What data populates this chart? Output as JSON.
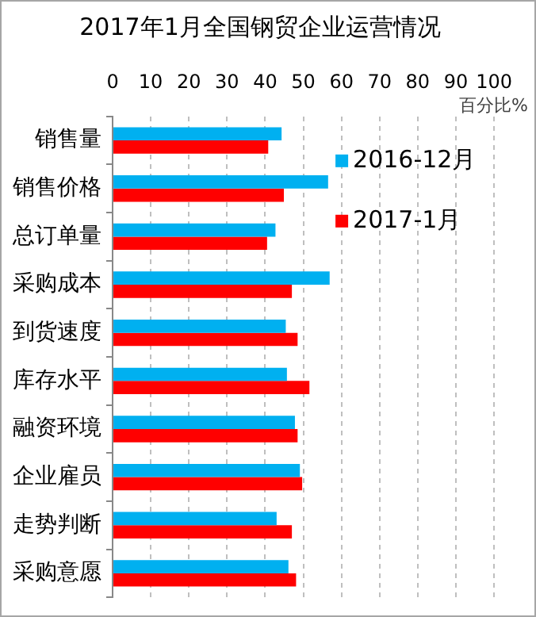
{
  "chart_data": {
    "type": "bar",
    "orientation": "horizontal",
    "title": "2017年1月全国钢贸企业运营情况",
    "xlabel": "百分比%",
    "categories": [
      "销售量",
      "销售价格",
      "总订单量",
      "采购成本",
      "到货速度",
      "库存水平",
      "融资环境",
      "企业雇员",
      "走势判断",
      "采购意愿"
    ],
    "series": [
      {
        "name": "2016-12月",
        "color": "#00b0f0",
        "values": [
          44.3,
          56.5,
          42.7,
          56.9,
          45.4,
          45.7,
          47.8,
          49.1,
          43.0,
          46.1
        ]
      },
      {
        "name": "2017-1月",
        "color": "#ff0000",
        "values": [
          40.8,
          44.9,
          40.5,
          47.0,
          48.5,
          51.6,
          48.5,
          49.7,
          47.0,
          48.1
        ]
      }
    ],
    "xlim": [
      0,
      100
    ],
    "xticks": [
      0,
      10,
      20,
      30,
      40,
      50,
      60,
      70,
      80,
      90,
      100
    ],
    "grid": "x",
    "legend": "top right"
  }
}
